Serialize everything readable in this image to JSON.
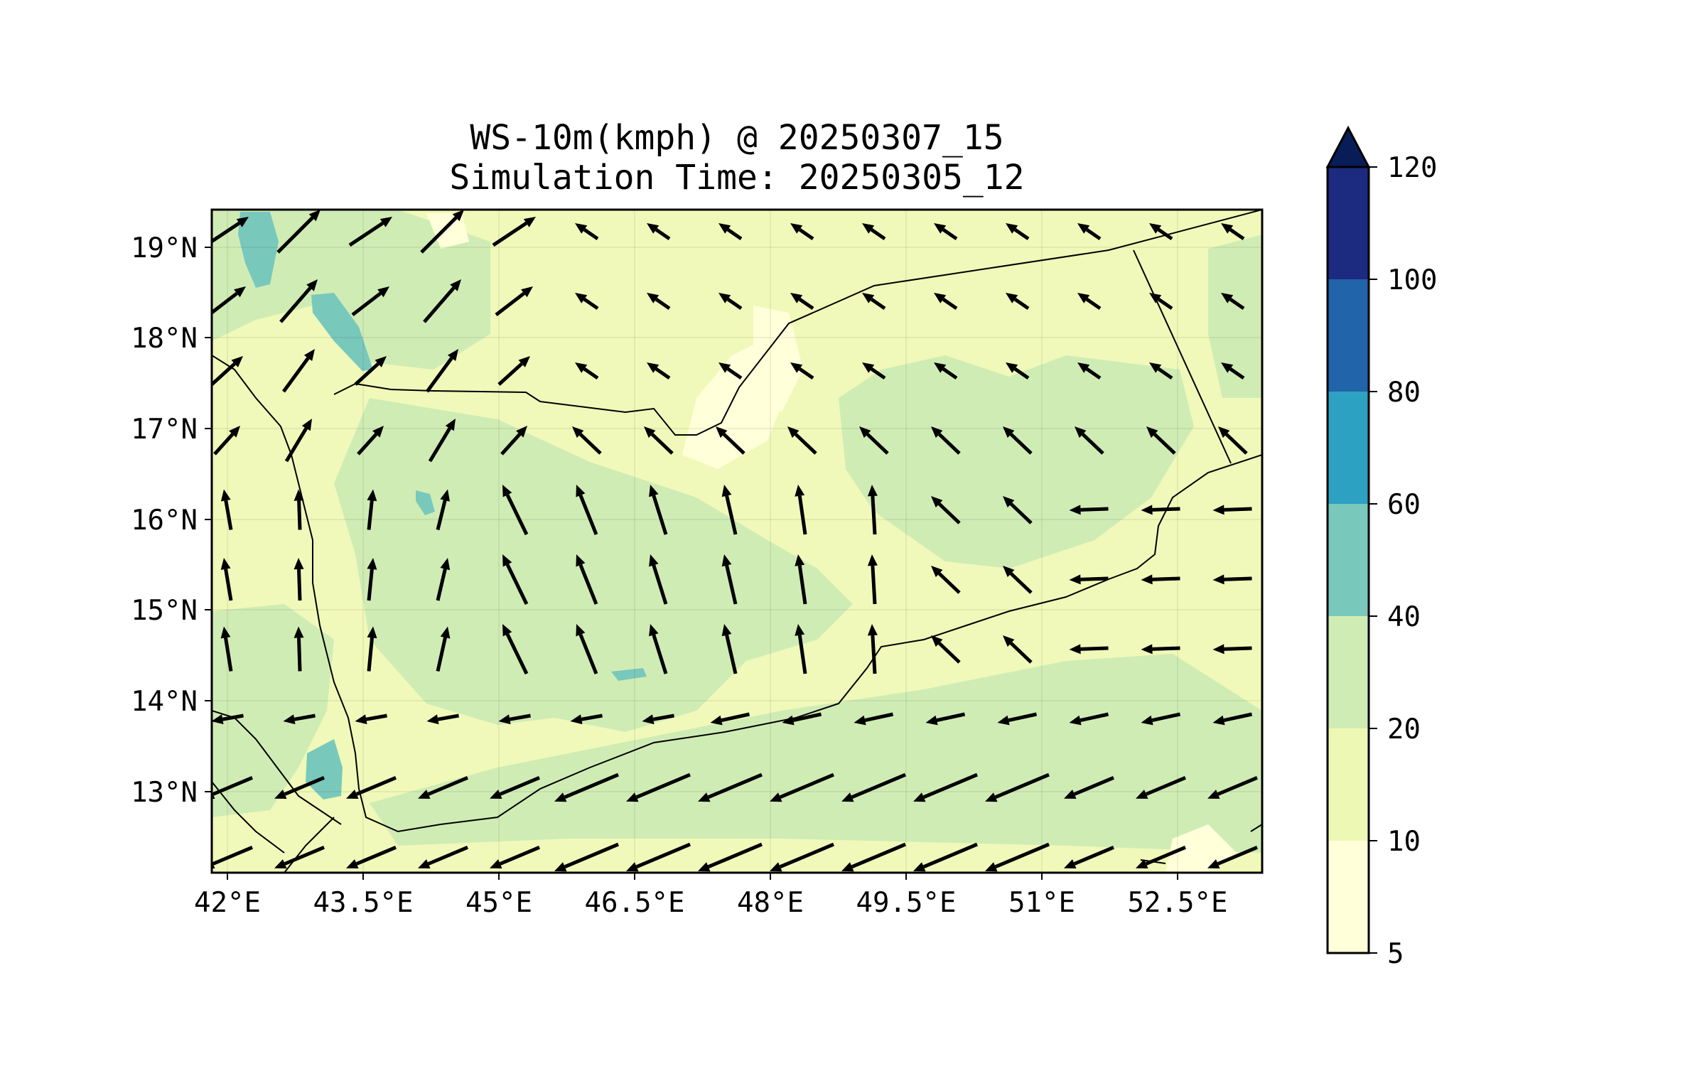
{
  "title": {
    "line1": "WS-10m(kmph) @ 20250307_15",
    "line2": "Simulation Time: 20250305_12"
  },
  "map": {
    "lon_range": [
      42.0,
      53.6
    ],
    "lat_range": [
      12.2,
      19.5
    ],
    "x_ticks": [
      {
        "value": 42.0,
        "label": "42°E"
      },
      {
        "value": 43.5,
        "label": "43.5°E"
      },
      {
        "value": 45.0,
        "label": "45°E"
      },
      {
        "value": 46.5,
        "label": "46.5°E"
      },
      {
        "value": 48.0,
        "label": "48°E"
      },
      {
        "value": 49.5,
        "label": "49.5°E"
      },
      {
        "value": 51.0,
        "label": "51°E"
      },
      {
        "value": 52.5,
        "label": "52.5°E"
      }
    ],
    "y_ticks": [
      {
        "value": 19.0,
        "label": "19°N"
      },
      {
        "value": 18.0,
        "label": "18°N"
      },
      {
        "value": 17.0,
        "label": "17°N"
      },
      {
        "value": 16.0,
        "label": "16°N"
      },
      {
        "value": 15.0,
        "label": "15°N"
      },
      {
        "value": 14.0,
        "label": "14°N"
      },
      {
        "value": 13.0,
        "label": "13°N"
      }
    ],
    "colors": {
      "land_bg": "#f0f9b9",
      "c5_10": "#ffffd9",
      "c10_20": "#eef8b5",
      "c20_40": "#d0ecb5",
      "c40_60": "#79c8bc",
      "arrows": "#000000",
      "borders": "#000000"
    }
  },
  "colorbar": {
    "levels": [
      {
        "label": "5",
        "color": "#ffffd9"
      },
      {
        "label": "10",
        "color": "#eef8b5"
      },
      {
        "label": "20",
        "color": "#d0ecb5"
      },
      {
        "label": "40",
        "color": "#79c8bc"
      },
      {
        "label": "60",
        "color": "#2ca1c2"
      },
      {
        "label": "80",
        "color": "#2164aa"
      },
      {
        "label": "100",
        "color": "#1c2b7f"
      },
      {
        "label": "120",
        "color": null
      }
    ],
    "extend_color": "#081d58"
  }
}
